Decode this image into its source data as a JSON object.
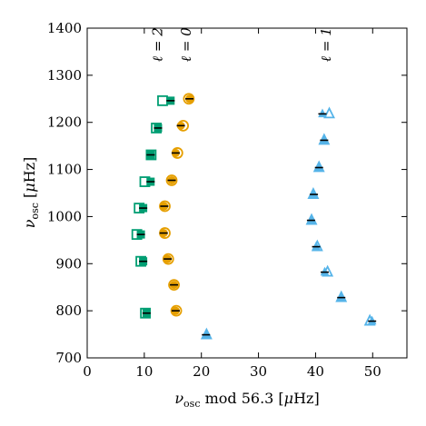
{
  "chart_data": {
    "type": "scatter",
    "title": "",
    "xlabel": "ν_osc mod 56.3 [μHz]",
    "ylabel": "ν_osc [μHz]",
    "xlim": [
      0,
      56
    ],
    "ylim": [
      700,
      1400
    ],
    "xticks": [
      0,
      10,
      20,
      30,
      40,
      50
    ],
    "yticks": [
      700,
      800,
      900,
      1000,
      1100,
      1200,
      1300,
      1400
    ],
    "grid": false,
    "legend": "none",
    "colors": {
      "l0": "#E69F00",
      "l1": "#56B4E9",
      "l2": "#009E73"
    },
    "annotations": [
      {
        "text": "ℓ = 2",
        "x": 13.1,
        "y": 1365
      },
      {
        "text": "ℓ = 0",
        "x": 18.1,
        "y": 1365
      },
      {
        "text": "ℓ = 1",
        "x": 42.6,
        "y": 1365
      }
    ],
    "series": [
      {
        "degree": "ℓ = 0",
        "marker": "circle",
        "model_open": [
          [
            15.6,
            800
          ],
          [
            15.2,
            855
          ],
          [
            14.2,
            910
          ],
          [
            13.6,
            965
          ],
          [
            13.6,
            1022
          ],
          [
            14.8,
            1077
          ],
          [
            15.8,
            1135
          ],
          [
            16.8,
            1193
          ],
          [
            17.8,
            1250
          ]
        ],
        "observed_filled": [
          [
            15.5,
            800
          ],
          [
            15.2,
            855
          ],
          [
            14.1,
            910
          ],
          [
            13.4,
            965
          ],
          [
            13.5,
            1022
          ],
          [
            14.8,
            1077
          ],
          [
            15.5,
            1135
          ],
          [
            16.4,
            1193
          ],
          [
            17.9,
            1250
          ]
        ]
      },
      {
        "degree": "ℓ = 1",
        "marker": "triangle",
        "model_open": [
          [
            20.9,
            749
          ],
          [
            49.5,
            778
          ],
          [
            44.5,
            828
          ],
          [
            42.1,
            882
          ],
          [
            40.3,
            936
          ],
          [
            39.3,
            992
          ],
          [
            39.6,
            1047
          ],
          [
            40.6,
            1104
          ],
          [
            41.5,
            1162
          ],
          [
            42.4,
            1218
          ]
        ],
        "observed_filled": [
          [
            20.8,
            749
          ],
          [
            49.9,
            778
          ],
          [
            44.5,
            828
          ],
          [
            41.6,
            882
          ],
          [
            40.1,
            936
          ],
          [
            39.2,
            992
          ],
          [
            39.7,
            1047
          ],
          [
            40.6,
            1104
          ],
          [
            41.5,
            1162
          ],
          [
            41.2,
            1218
          ]
        ]
      },
      {
        "degree": "ℓ = 2",
        "marker": "square",
        "model_open": [
          [
            10.2,
            795
          ],
          [
            9.4,
            905
          ],
          [
            8.7,
            962
          ],
          [
            9.1,
            1018
          ],
          [
            10.1,
            1074
          ],
          [
            11.2,
            1131
          ],
          [
            12.1,
            1188
          ],
          [
            13.2,
            1246
          ]
        ],
        "observed_filled": [
          [
            10.4,
            795
          ],
          [
            9.8,
            905
          ],
          [
            9.4,
            962
          ],
          [
            9.8,
            1018
          ],
          [
            11.1,
            1074
          ],
          [
            11.1,
            1131
          ],
          [
            12.4,
            1188
          ],
          [
            14.6,
            1246
          ]
        ]
      }
    ]
  }
}
